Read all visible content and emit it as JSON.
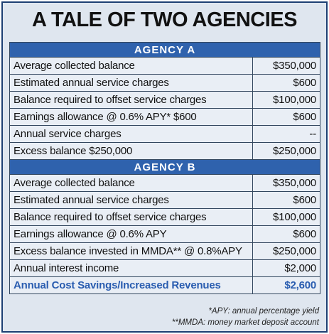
{
  "title": "A TALE OF TWO AGENCIES",
  "sections": [
    {
      "header": "AGENCY A",
      "rows": [
        [
          "Average collected balance",
          "$350,000"
        ],
        [
          "Estimated annual service charges",
          "$600"
        ],
        [
          "Balance required to offset service charges",
          "$100,000"
        ],
        [
          "Earnings allowance @ 0.6% APY*  $600",
          "$600"
        ],
        [
          "Annual service charges",
          "--"
        ],
        [
          "Excess balance $250,000",
          "$250,000"
        ]
      ]
    },
    {
      "header": "AGENCY B",
      "rows": [
        [
          "Average collected balance",
          "$350,000"
        ],
        [
          "Estimated annual service charges",
          "$600"
        ],
        [
          "Balance required to offset service charges",
          "$100,000"
        ],
        [
          "Earnings allowance @ 0.6% APY",
          "$600"
        ],
        [
          "Excess balance invested in MMDA** @ 0.8%APY",
          "$250,000"
        ],
        [
          "Annual interest income",
          "$2,000"
        ],
        [
          "Annual Cost Savings/Increased Revenues",
          "$2,600"
        ]
      ]
    }
  ],
  "footnotes": [
    "*APY: annual percentage yield",
    "**MMDA: money market deposit account"
  ]
}
